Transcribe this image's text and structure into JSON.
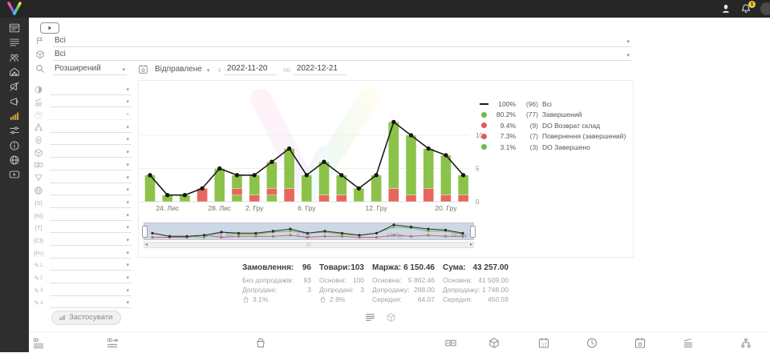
{
  "topbar": {
    "notification_count": "1"
  },
  "rail": {
    "items": [
      {
        "name": "dashboard-icon"
      },
      {
        "name": "orders-icon"
      },
      {
        "name": "clients-icon"
      },
      {
        "name": "warehouse-icon"
      },
      {
        "name": "promo-off-icon"
      },
      {
        "name": "promo-icon"
      },
      {
        "name": "analytics-icon",
        "active": true
      },
      {
        "name": "settings-sliders-icon"
      },
      {
        "name": "info-icon"
      },
      {
        "name": "globe-icon"
      },
      {
        "name": "video-icon"
      }
    ]
  },
  "header_filters": {
    "rows": [
      {
        "icon": "status-flag-icon",
        "value": "Всі"
      },
      {
        "icon": "package-icon",
        "value": "Всі"
      }
    ],
    "search_row": {
      "mode": "Розширений",
      "date_type": "Відправлене",
      "from_label": "з",
      "date_from": "2022-11-20",
      "to_label": "по",
      "date_to": "2022-12-21"
    }
  },
  "filter_panel": {
    "rows": [
      {
        "icon": "half-circle-icon"
      },
      {
        "icon": "layers-icon"
      },
      {
        "icon": "question-icon",
        "disabled": true
      },
      {
        "icon": "hierarchy-icon"
      },
      {
        "icon": "badge-icon"
      },
      {
        "icon": "package-icon"
      },
      {
        "icon": "banknote-icon"
      },
      {
        "icon": "funnel-icon"
      },
      {
        "icon": "globe-icon"
      },
      {
        "icon": "token-icon",
        "token": "{S}"
      },
      {
        "icon": "token-icon",
        "token": "{M}"
      },
      {
        "icon": "token-icon",
        "token": "{T}"
      },
      {
        "icon": "token-icon",
        "token": "{Ct}"
      },
      {
        "icon": "token-icon",
        "token": "{Pr}"
      },
      {
        "icon": "pencil-icon",
        "token": "1"
      },
      {
        "icon": "pencil-icon",
        "token": "2"
      },
      {
        "icon": "pencil-icon",
        "token": "3"
      },
      {
        "icon": "pencil-icon",
        "token": "4"
      }
    ],
    "apply_label": "Застосувати"
  },
  "chart_data": {
    "type": "bar",
    "stacked": true,
    "ylim": [
      0,
      16
    ],
    "yticks": [
      0,
      5,
      10
    ],
    "grid": true,
    "legend_position": "right",
    "colors": {
      "green": "#8bc34a",
      "red": "#e8675d",
      "line": "#1c1c1c"
    },
    "x_ticks": [
      {
        "index": 1,
        "label": "24. Лис"
      },
      {
        "index": 4,
        "label": "28. Лис"
      },
      {
        "index": 6,
        "label": "2. Гру"
      },
      {
        "index": 9,
        "label": "6. Гру"
      },
      {
        "index": 13,
        "label": "12. Гру"
      },
      {
        "index": 17,
        "label": "20. Гру"
      }
    ],
    "bars": [
      {
        "segments": [
          {
            "color": "green",
            "value": 4
          }
        ]
      },
      {
        "segments": [
          {
            "color": "green",
            "value": 1
          }
        ]
      },
      {
        "segments": [
          {
            "color": "green",
            "value": 1
          }
        ]
      },
      {
        "segments": [
          {
            "color": "red",
            "value": 2
          }
        ]
      },
      {
        "segments": [
          {
            "color": "green",
            "value": 5
          }
        ]
      },
      {
        "segments": [
          {
            "color": "green",
            "value": 1
          },
          {
            "color": "red",
            "value": 1
          },
          {
            "color": "green",
            "value": 2
          }
        ]
      },
      {
        "segments": [
          {
            "color": "red",
            "value": 1
          },
          {
            "color": "green",
            "value": 3
          }
        ]
      },
      {
        "segments": [
          {
            "color": "green",
            "value": 1
          },
          {
            "color": "red",
            "value": 1
          },
          {
            "color": "green",
            "value": 4
          }
        ]
      },
      {
        "segments": [
          {
            "color": "red",
            "value": 2
          },
          {
            "color": "green",
            "value": 6
          }
        ]
      },
      {
        "segments": [
          {
            "color": "green",
            "value": 4
          }
        ]
      },
      {
        "segments": [
          {
            "color": "red",
            "value": 1
          },
          {
            "color": "green",
            "value": 5
          }
        ]
      },
      {
        "segments": [
          {
            "color": "red",
            "value": 1
          },
          {
            "color": "green",
            "value": 3
          }
        ]
      },
      {
        "segments": [
          {
            "color": "green",
            "value": 2
          }
        ]
      },
      {
        "segments": [
          {
            "color": "green",
            "value": 4
          }
        ]
      },
      {
        "segments": [
          {
            "color": "red",
            "value": 2
          },
          {
            "color": "green",
            "value": 10
          }
        ]
      },
      {
        "segments": [
          {
            "color": "red",
            "value": 1
          },
          {
            "color": "green",
            "value": 9
          }
        ]
      },
      {
        "segments": [
          {
            "color": "red",
            "value": 2
          },
          {
            "color": "green",
            "value": 6
          }
        ]
      },
      {
        "segments": [
          {
            "color": "red",
            "value": 1
          },
          {
            "color": "green",
            "value": 6
          }
        ]
      },
      {
        "segments": [
          {
            "color": "red",
            "value": 1
          },
          {
            "color": "green",
            "value": 3
          }
        ]
      }
    ],
    "line": {
      "name": "Всі",
      "values": [
        4,
        1,
        1,
        2,
        5,
        4,
        4,
        6,
        8,
        4,
        6,
        4,
        2,
        4,
        12,
        10,
        8,
        7,
        4
      ]
    },
    "legend": [
      {
        "swatch": "line",
        "pct": "100%",
        "count": "(96)",
        "label": "Всі"
      },
      {
        "swatch": "green",
        "pct": "80.2%",
        "count": "(77)",
        "label": "Завершений"
      },
      {
        "swatch": "red",
        "pct": "9.4%",
        "count": "(9)",
        "label": "DO Возврат склад"
      },
      {
        "swatch": "red",
        "pct": "7.3%",
        "count": "(7)",
        "label": "Повернення (завершений)"
      },
      {
        "swatch": "green",
        "pct": "3.1%",
        "count": "(3)",
        "label": "DO Завершено"
      }
    ],
    "minimap_labels": [
      {
        "text": "28. Лис",
        "x": 90
      },
      {
        "text": "6. Гру",
        "x": 190
      },
      {
        "text": "13. Гру",
        "x": 302
      },
      {
        "text": "19. Гру",
        "x": 382
      }
    ]
  },
  "stats": {
    "columns": [
      {
        "title": "Замовлення:",
        "value": "96",
        "rows": [
          {
            "label": "Без допродажів:",
            "value": "93"
          },
          {
            "label": "Допродані:",
            "value": "3"
          },
          {
            "icon": "basket-icon",
            "value": "3.1%"
          }
        ]
      },
      {
        "title": "Товари:",
        "value": "103",
        "rows": [
          {
            "label": "Основні:",
            "value": "100"
          },
          {
            "label": "Допродані:",
            "value": "3"
          },
          {
            "icon": "basket-icon",
            "value": "2.9%"
          }
        ]
      },
      {
        "title": "Маржа:",
        "value": "6 150.46",
        "rows": [
          {
            "label": "Основна:",
            "value": "5 862.46"
          },
          {
            "label": "Допродажу:",
            "value": "288.00"
          },
          {
            "label": "Середня:",
            "value": "64.07"
          }
        ]
      },
      {
        "title": "Сума:",
        "value": "43 257.00",
        "rows": [
          {
            "label": "Основна:",
            "value": "41 509.00"
          },
          {
            "label": "Допродажу:",
            "value": "1 748.00"
          },
          {
            "label": "Середня:",
            "value": "450.59"
          }
        ]
      }
    ]
  },
  "view_toggles": [
    {
      "name": "list-view-icon",
      "active": true
    },
    {
      "name": "package-view-icon",
      "active": false
    }
  ],
  "bottom_toolbar": {
    "items": [
      {
        "name": "id-list-icon"
      },
      {
        "name": "id-status-icon"
      },
      {
        "name": "bag-icon"
      },
      {
        "name": "banknote-icon"
      },
      {
        "name": "package-icon"
      },
      {
        "name": "calendar-date-icon"
      },
      {
        "name": "clock-icon"
      },
      {
        "name": "calendar-event-icon"
      },
      {
        "name": "layers-icon"
      },
      {
        "name": "hierarchy-icon"
      }
    ]
  }
}
